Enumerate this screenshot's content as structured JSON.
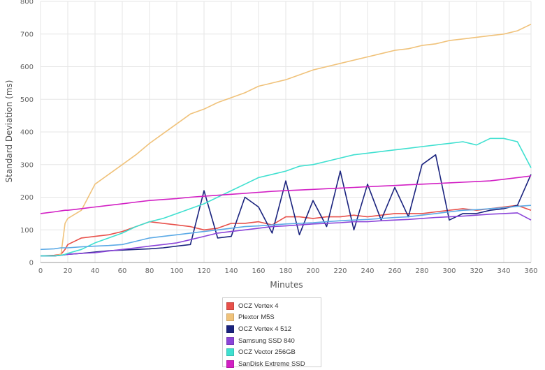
{
  "chart_data": {
    "type": "line",
    "title": "",
    "xlabel": "Minutes",
    "ylabel": "Standard Deviation (ms)",
    "xlim": [
      0,
      360
    ],
    "ylim": [
      0,
      800
    ],
    "x_ticks": [
      0,
      20,
      40,
      60,
      80,
      100,
      120,
      140,
      160,
      180,
      200,
      220,
      240,
      260,
      280,
      300,
      320,
      340,
      360
    ],
    "y_ticks": [
      0,
      100,
      200,
      300,
      400,
      500,
      600,
      700,
      800
    ],
    "grid": true,
    "legend_position": "bottom-center",
    "x": [
      0,
      10,
      15,
      18,
      20,
      30,
      40,
      50,
      60,
      70,
      80,
      90,
      100,
      110,
      120,
      130,
      140,
      150,
      160,
      170,
      180,
      190,
      200,
      210,
      220,
      230,
      240,
      250,
      260,
      270,
      280,
      290,
      300,
      310,
      320,
      330,
      340,
      350,
      360
    ],
    "series": [
      {
        "name": "OCZ Vertex 4",
        "color": "#e8504a",
        "values": [
          20,
          22,
          25,
          40,
          55,
          75,
          80,
          85,
          95,
          110,
          125,
          120,
          115,
          110,
          100,
          105,
          120,
          120,
          125,
          115,
          140,
          140,
          135,
          140,
          140,
          145,
          140,
          145,
          150,
          150,
          150,
          155,
          160,
          165,
          160,
          165,
          170,
          175,
          160
        ]
      },
      {
        "name": "Plextor M5S",
        "color": "#f0c27a",
        "values": [
          20,
          20,
          25,
          120,
          135,
          160,
          240,
          270,
          300,
          330,
          365,
          395,
          425,
          455,
          470,
          490,
          505,
          520,
          540,
          550,
          560,
          575,
          590,
          600,
          610,
          620,
          630,
          640,
          650,
          655,
          665,
          670,
          680,
          685,
          690,
          695,
          700,
          710,
          730
        ]
      },
      {
        "name": "OCZ Vertex 4 512",
        "color": "#1a237e",
        "values": [
          20,
          20,
          22,
          24,
          25,
          28,
          32,
          36,
          38,
          40,
          42,
          45,
          50,
          55,
          220,
          75,
          80,
          200,
          170,
          90,
          250,
          85,
          190,
          110,
          280,
          100,
          240,
          130,
          230,
          140,
          300,
          330,
          130,
          150,
          150,
          160,
          165,
          175,
          270
        ]
      },
      {
        "name": "Samsung SSD 840",
        "color": "#8b44d9",
        "values": [
          20,
          20,
          22,
          24,
          25,
          28,
          30,
          35,
          40,
          45,
          50,
          55,
          60,
          70,
          80,
          90,
          95,
          100,
          105,
          110,
          112,
          115,
          118,
          120,
          122,
          125,
          125,
          128,
          130,
          132,
          135,
          138,
          140,
          142,
          145,
          148,
          150,
          152,
          130
        ]
      },
      {
        "name": "OCZ Vector 256GB",
        "color": "#3fe0d0",
        "values": [
          20,
          20,
          22,
          25,
          28,
          40,
          60,
          75,
          90,
          110,
          125,
          135,
          150,
          165,
          180,
          200,
          220,
          240,
          260,
          270,
          280,
          295,
          300,
          310,
          320,
          330,
          335,
          340,
          345,
          350,
          355,
          360,
          365,
          370,
          360,
          380,
          380,
          370,
          290
        ]
      },
      {
        "name": "SanDisk Extreme SSD",
        "color": "#d21fc4",
        "values": [
          150,
          155,
          158,
          160,
          160,
          165,
          170,
          175,
          180,
          185,
          190,
          193,
          196,
          200,
          203,
          206,
          209,
          212,
          215,
          218,
          220,
          222,
          224,
          226,
          228,
          230,
          232,
          234,
          236,
          238,
          240,
          242,
          244,
          246,
          248,
          250,
          255,
          260,
          265
        ]
      },
      {
        "name": "",
        "color": "#5aa9e6",
        "values": [
          40,
          42,
          45,
          45,
          45,
          48,
          50,
          52,
          55,
          65,
          75,
          80,
          85,
          90,
          95,
          100,
          105,
          110,
          112,
          115,
          118,
          120,
          122,
          125,
          128,
          130,
          132,
          135,
          138,
          140,
          145,
          150,
          155,
          160,
          162,
          165,
          168,
          172,
          175
        ]
      }
    ]
  }
}
